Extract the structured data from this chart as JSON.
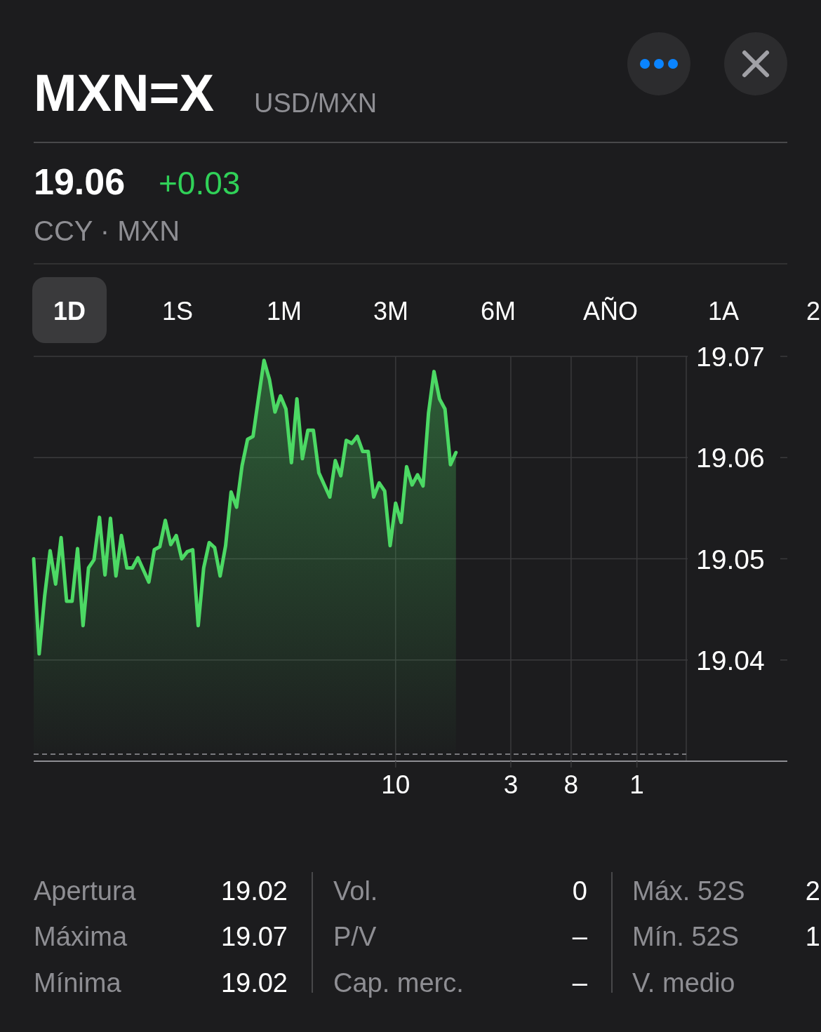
{
  "chart_data": {
    "type": "area",
    "title": "MXN=X",
    "subtitle": "USD/MXN",
    "annotations": [
      "19.06",
      "+0.03",
      "CCY · MXN",
      "1D",
      "1S",
      "1M",
      "3M",
      "6M",
      "AÑO",
      "1A",
      "2",
      "Apertura",
      "19.02",
      "Máxima",
      "19.07",
      "Mínima",
      "19.02",
      "Vol.",
      "0",
      "P/V",
      "–",
      "Cap. merc.",
      "–",
      "Máx. 52S",
      "2",
      "Mín. 52S",
      "1",
      "V. medio"
    ],
    "categories": [
      null,
      null,
      null,
      null,
      null,
      null,
      null,
      null,
      null,
      null,
      null,
      null,
      null,
      null,
      null,
      null,
      null,
      null,
      null,
      null,
      null,
      null,
      null,
      null,
      null,
      null,
      null,
      null,
      null,
      null,
      null,
      null,
      null,
      null,
      null,
      null,
      null,
      null,
      null,
      null,
      null,
      null,
      null,
      null,
      null,
      null,
      null,
      null,
      null,
      null,
      null,
      null,
      null,
      null,
      null,
      null,
      null,
      null,
      null,
      null,
      null,
      null,
      null,
      null,
      null,
      null,
      "10",
      null,
      null,
      null,
      null,
      null,
      null,
      null,
      null,
      null,
      null,
      null,
      null,
      null,
      null,
      null,
      null,
      null,
      null,
      null,
      null,
      "3",
      null,
      null,
      null,
      null,
      null,
      null,
      null,
      null,
      null,
      null,
      "8",
      null,
      null,
      null,
      null,
      null,
      null,
      null,
      null,
      null,
      null,
      null,
      "1",
      null,
      null,
      null,
      null,
      null,
      null,
      null,
      null,
      null
    ],
    "values": [
      19.05,
      19.0406,
      19.0463,
      19.0508,
      19.0475,
      19.0521,
      19.0458,
      19.0458,
      19.051,
      19.0434,
      19.0491,
      19.0499,
      19.0541,
      19.0484,
      19.054,
      19.0483,
      19.0523,
      19.0491,
      19.0491,
      19.0501,
      19.0489,
      19.0477,
      19.0509,
      19.0512,
      19.0538,
      19.0514,
      19.0523,
      19.05,
      19.0507,
      19.0509,
      19.0434,
      19.0491,
      19.0516,
      19.0511,
      19.0483,
      19.0513,
      19.0566,
      19.0551,
      19.0592,
      19.0618,
      19.0621,
      19.0659,
      19.0696,
      19.0677,
      19.0645,
      19.0661,
      19.0648,
      19.0595,
      19.0658,
      19.0599,
      19.0627,
      19.0627,
      19.0585,
      19.0573,
      19.0561,
      19.0597,
      19.0582,
      19.0617,
      19.0614,
      19.0621,
      19.0606,
      19.0606,
      19.0561,
      19.0575,
      19.0567,
      19.0513,
      19.0555,
      19.0536,
      19.0591,
      19.0573,
      19.0583,
      19.0572,
      19.0644,
      19.0685,
      19.0658,
      19.0648,
      19.0593,
      19.0605,
      null,
      null,
      null,
      null,
      null,
      null,
      null,
      null,
      null,
      null,
      null,
      null,
      null,
      null,
      null,
      null,
      null,
      null,
      null,
      null,
      null,
      null,
      null,
      null,
      null,
      null,
      null,
      null,
      null,
      null,
      null,
      null,
      null,
      null,
      null,
      null,
      null,
      null,
      null,
      null,
      null,
      null
    ],
    "color": "#4cd964",
    "ylim": [
      19.03,
      19.07
    ],
    "yticks": [
      19.04,
      19.05,
      19.06,
      19.07
    ],
    "grid": true,
    "ref_lines": [
      {
        "axis": "y",
        "value": 19.0307,
        "line_style": "dashed"
      }
    ]
  }
}
